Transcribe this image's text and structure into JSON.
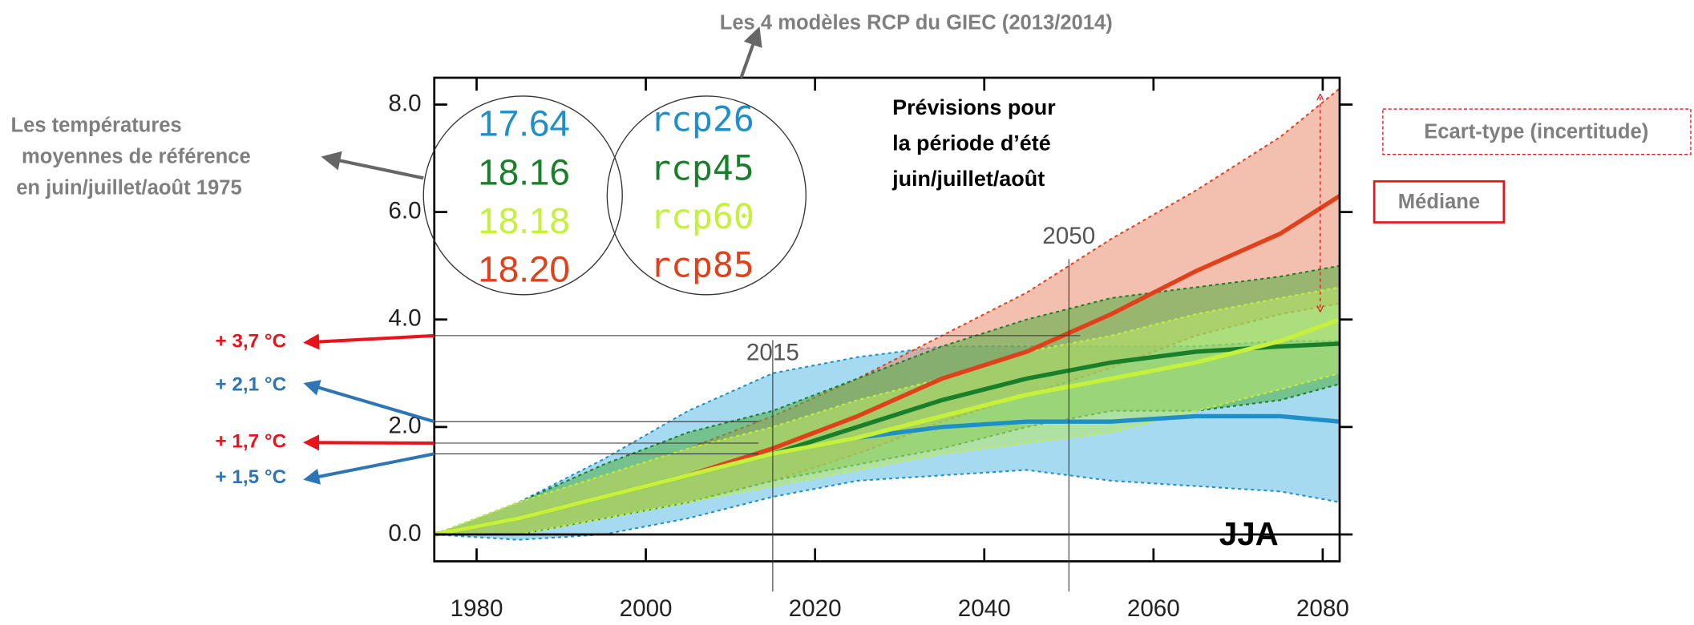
{
  "chart_data": {
    "type": "band-line",
    "title": "Les 4 modèles RCP du GIEC (2013/2014)",
    "reference_note": [
      "Les températures",
      "moyennes de référence",
      "en juin/juillet/août 1975"
    ],
    "forecast_note": [
      "Prévisions pour",
      "la période d’été",
      "juin/juillet/août"
    ],
    "season_label": "JJA",
    "spread_label": "Ecart-type (incertitude)",
    "median_label": "Médiane",
    "x": [
      1975,
      1985,
      1995,
      2005,
      2015,
      2025,
      2035,
      2045,
      2055,
      2065,
      2075,
      2082
    ],
    "series": [
      {
        "name": "rcp26",
        "baseline": "17.64",
        "color": "#1f8fc8",
        "band_color": "#5bbce4",
        "values": [
          0,
          0.3,
          0.7,
          1.1,
          1.5,
          1.8,
          2.0,
          2.1,
          2.1,
          2.2,
          2.2,
          2.1
        ],
        "low": [
          0,
          -0.1,
          0.0,
          0.3,
          0.7,
          1.0,
          1.1,
          1.2,
          1.0,
          0.9,
          0.8,
          0.6
        ],
        "high": [
          0,
          0.6,
          1.4,
          2.3,
          3.0,
          3.3,
          3.5,
          3.5,
          3.5,
          3.5,
          3.6,
          3.6
        ]
      },
      {
        "name": "rcp85",
        "baseline": "18.20",
        "color": "#e0401a",
        "band_color": "#e98a6e",
        "values": [
          0,
          0.3,
          0.7,
          1.1,
          1.6,
          2.2,
          2.9,
          3.4,
          4.1,
          4.9,
          5.6,
          6.3
        ],
        "low": [
          0,
          0,
          0.3,
          0.6,
          1.0,
          1.5,
          2.1,
          2.6,
          3.1,
          3.7,
          4.1,
          4.3
        ],
        "high": [
          0,
          0.6,
          1.1,
          1.6,
          2.2,
          2.9,
          3.7,
          4.5,
          5.5,
          6.4,
          7.4,
          8.3
        ]
      },
      {
        "name": "rcp45",
        "baseline": "18.16",
        "color": "#1a7f2a",
        "band_color": "#4fae3e",
        "values": [
          0,
          0.3,
          0.7,
          1.1,
          1.5,
          2.0,
          2.5,
          2.9,
          3.2,
          3.4,
          3.5,
          3.55
        ],
        "low": [
          0,
          0,
          0.3,
          0.6,
          1.0,
          1.3,
          1.6,
          2.0,
          2.3,
          2.3,
          2.5,
          2.8
        ],
        "high": [
          0,
          0.6,
          1.3,
          1.9,
          2.3,
          2.9,
          3.5,
          4.0,
          4.4,
          4.6,
          4.8,
          5.0
        ]
      },
      {
        "name": "rcp60",
        "baseline": "18.18",
        "color": "#c5f03c",
        "band_color": "#b8e868",
        "values": [
          0,
          0.3,
          0.7,
          1.1,
          1.5,
          1.8,
          2.2,
          2.6,
          2.9,
          3.2,
          3.6,
          4.0
        ],
        "low": [
          0,
          0,
          0.3,
          0.6,
          0.9,
          1.2,
          1.5,
          1.7,
          1.9,
          2.3,
          2.7,
          3.0
        ],
        "high": [
          0,
          0.6,
          1.1,
          1.6,
          2.0,
          2.5,
          2.9,
          3.4,
          3.7,
          4.1,
          4.4,
          4.6
        ]
      }
    ],
    "legend_order": [
      0,
      2,
      3,
      1
    ],
    "xlim": [
      1975,
      2082
    ],
    "ylim": [
      -0.5,
      8.5
    ],
    "xticks": [
      1980,
      2000,
      2020,
      2040,
      2060,
      2080
    ],
    "yticks": [
      {
        "value": 0,
        "label": "0.0"
      },
      {
        "value": 2,
        "label": "2.0"
      },
      {
        "value": 4,
        "label": "4.0"
      },
      {
        "value": 6,
        "label": "6.0"
      },
      {
        "value": 8,
        "label": "8.0"
      }
    ],
    "vlines": [
      2015,
      2050
    ],
    "reference_lines": [
      {
        "value": 3.7,
        "label": "+ 3,7 °C",
        "color": "#e8141c"
      },
      {
        "value": 2.1,
        "label": "+ 2,1 °C",
        "color": "#2e75b6"
      },
      {
        "value": 1.7,
        "label": "+ 1,7 °C",
        "color": "#e8141c"
      },
      {
        "value": 1.5,
        "label": "+ 1,5 °C",
        "color": "#2e75b6"
      }
    ]
  }
}
